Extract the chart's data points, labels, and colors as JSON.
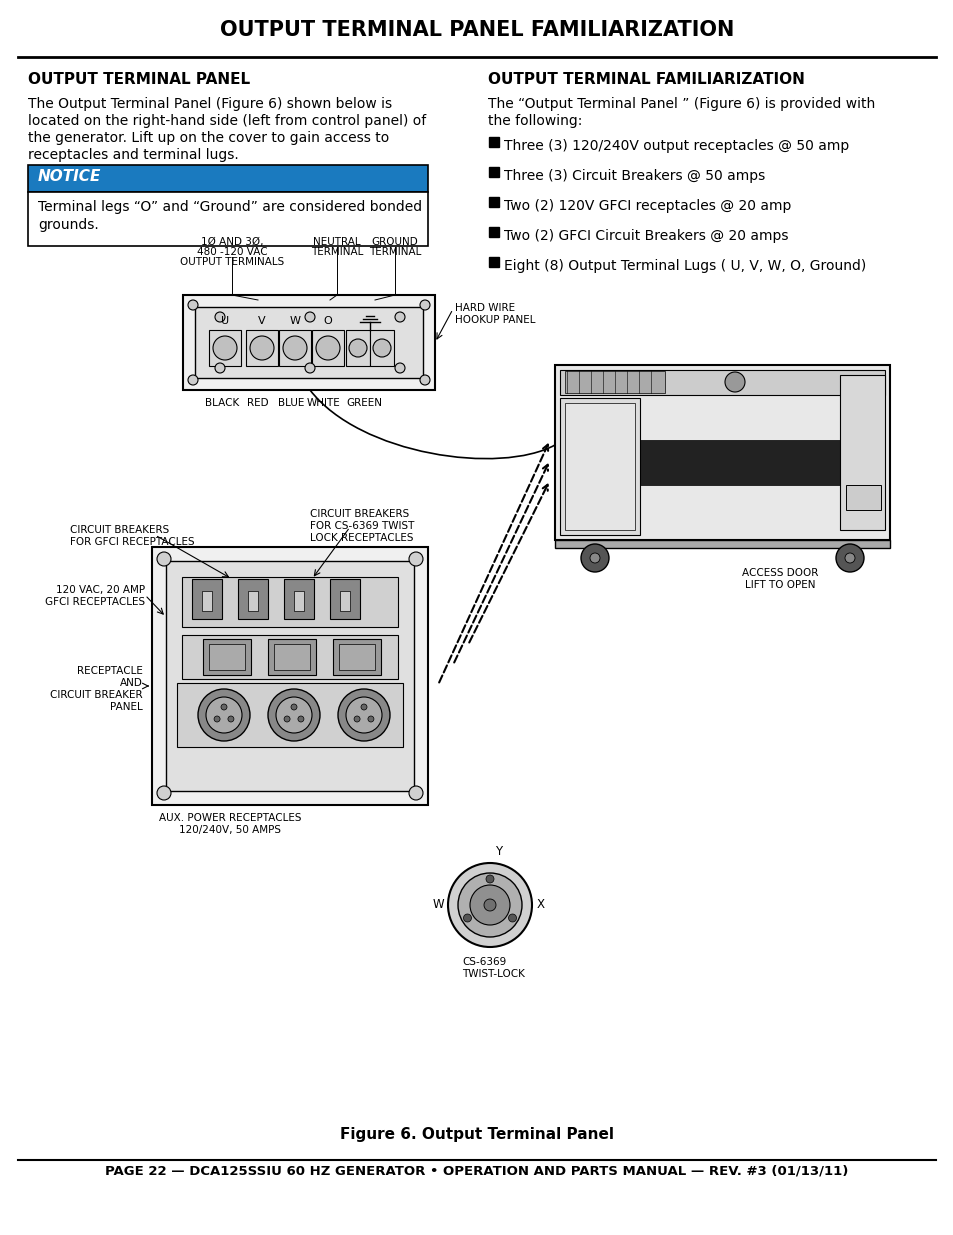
{
  "page_title": "OUTPUT TERMINAL PANEL FAMILIARIZATION",
  "left_section_title": "OUTPUT TERMINAL PANEL",
  "left_para_lines": [
    "The Output Terminal Panel (Figure 6) shown below is",
    "located on the right-hand side (left from control panel) of",
    "the generator. Lift up on the cover to gain access to",
    "receptacles and terminal lugs."
  ],
  "notice_label": "NOTICE",
  "notice_lines": [
    "Terminal legs “O” and “Ground” are considered bonded",
    "grounds."
  ],
  "right_section_title": "OUTPUT TERMINAL FAMILIARIZATION",
  "right_intro_lines": [
    "The “Output Terminal Panel ” (Figure 6) is provided with",
    "the following:"
  ],
  "bullet_items": [
    "Three (3) 120/240V output receptacles @ 50 amp",
    "Three (3) Circuit Breakers @ 50 amps",
    "Two (2) 120V GFCI receptacles @ 20 amp",
    "Two (2) GFCI Circuit Breakers @ 20 amps",
    "Eight (8) Output Terminal Lugs ( U, V, W, O, Ground)"
  ],
  "figure_caption": "Figure 6. Output Terminal Panel",
  "footer_text": "PAGE 22 — DCA125SSIU 60 HZ GENERATOR • OPERATION AND PARTS MANUAL — REV. #3 (01/13/11)",
  "notice_bg": "#1a7abf",
  "bg_color": "#ffffff"
}
